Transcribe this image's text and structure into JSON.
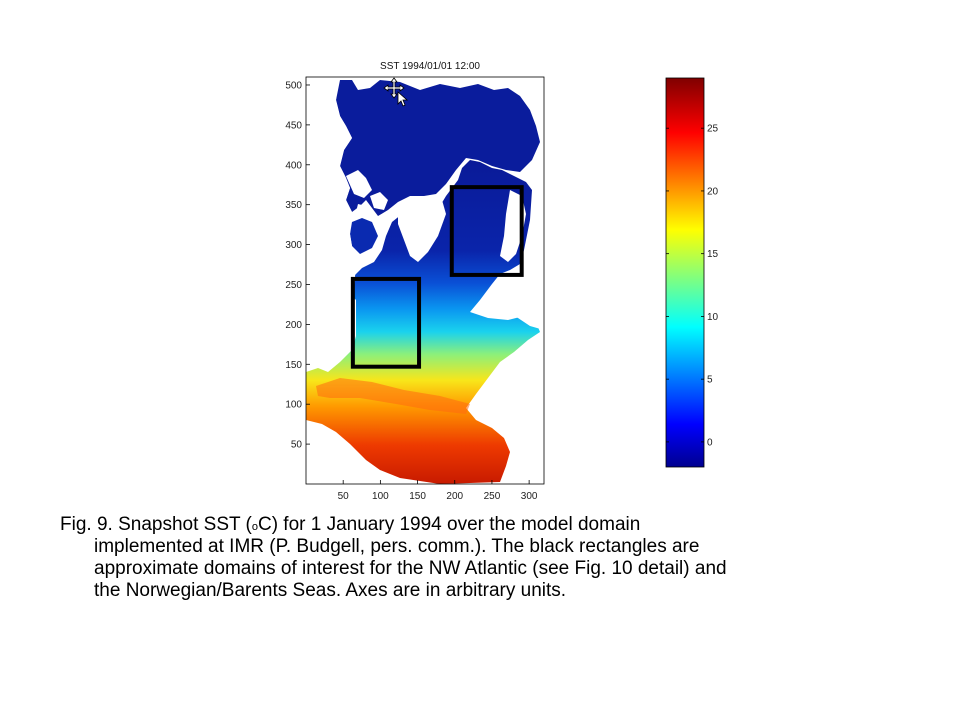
{
  "chart_data": [
    {
      "type": "heatmap",
      "title": "SST 1994/01/01 12:00",
      "xlabel": "",
      "ylabel": "",
      "xlim": [
        0,
        320
      ],
      "ylim": [
        0,
        510
      ],
      "x_ticks": [
        50,
        100,
        150,
        200,
        250,
        300
      ],
      "y_ticks": [
        50,
        100,
        150,
        200,
        250,
        300,
        350,
        400,
        450,
        500
      ],
      "x_tick_labels": [
        "50",
        "100",
        "150",
        "200",
        "250",
        "300"
      ],
      "y_tick_labels": [
        "50",
        "100",
        "150",
        "200",
        "250",
        "300",
        "350",
        "400",
        "450",
        "500"
      ],
      "colormap": "jet",
      "color_range": [
        -2,
        29
      ],
      "rectangles": [
        {
          "name": "NW Atlantic",
          "x_range": [
            63,
            152
          ],
          "y_range": [
            147,
            257
          ]
        },
        {
          "name": "Norwegian/Barents Seas",
          "x_range": [
            196,
            290
          ],
          "y_range": [
            262,
            372
          ]
        }
      ]
    },
    {
      "type": "colorbar",
      "colormap": "jet",
      "range": [
        -2,
        29
      ],
      "ticks": [
        0,
        5,
        10,
        15,
        20,
        25
      ],
      "tick_labels": [
        "0",
        "5",
        "10",
        "15",
        "20",
        "25"
      ]
    }
  ],
  "caption": {
    "line1_a": "Fig. 9.  Snapshot SST (",
    "sup": "o",
    "line1_b": "C) for 1 January 1994 over the model domain",
    "line2": "implemented at IMR (P. Budgell, pers. comm.).  The black rectangles are",
    "line3": "approximate domains of interest for the NW Atlantic (see Fig. 10 detail) and",
    "line4": "the Norwegian/Barents Seas.  Axes are in arbitrary units."
  },
  "colors": {
    "land": "#ffffff",
    "rectangle": "#000000",
    "cold": "#0a1e9e",
    "warm": "#d41c00"
  },
  "icons": [
    "move-cursor-icon"
  ]
}
